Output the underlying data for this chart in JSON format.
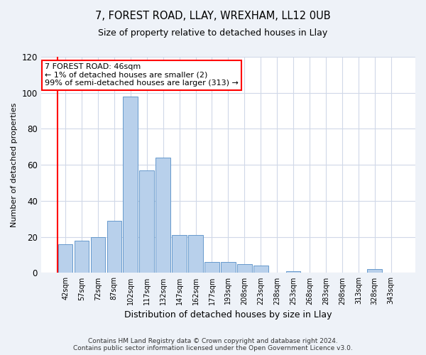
{
  "title": "7, FOREST ROAD, LLAY, WREXHAM, LL12 0UB",
  "subtitle": "Size of property relative to detached houses in Llay",
  "xlabel": "Distribution of detached houses by size in Llay",
  "ylabel": "Number of detached properties",
  "categories": [
    "42sqm",
    "57sqm",
    "72sqm",
    "87sqm",
    "102sqm",
    "117sqm",
    "132sqm",
    "147sqm",
    "162sqm",
    "177sqm",
    "193sqm",
    "208sqm",
    "223sqm",
    "238sqm",
    "253sqm",
    "268sqm",
    "283sqm",
    "298sqm",
    "313sqm",
    "328sqm",
    "343sqm"
  ],
  "values": [
    16,
    18,
    20,
    29,
    98,
    57,
    64,
    21,
    21,
    6,
    6,
    5,
    4,
    0,
    1,
    0,
    0,
    0,
    0,
    2,
    0
  ],
  "bar_color": "#b8d0eb",
  "bar_edge_color": "#6699cc",
  "ylim": [
    0,
    120
  ],
  "yticks": [
    0,
    20,
    40,
    60,
    80,
    100,
    120
  ],
  "annotation_text": "7 FOREST ROAD: 46sqm\n← 1% of detached houses are smaller (2)\n99% of semi-detached houses are larger (313) →",
  "annotation_box_color": "white",
  "annotation_box_edge_color": "red",
  "footer": "Contains HM Land Registry data © Crown copyright and database right 2024.\nContains public sector information licensed under the Open Government Licence v3.0.",
  "background_color": "#eef2f8",
  "plot_bg_color": "#ffffff",
  "grid_color": "#d0d8e8"
}
